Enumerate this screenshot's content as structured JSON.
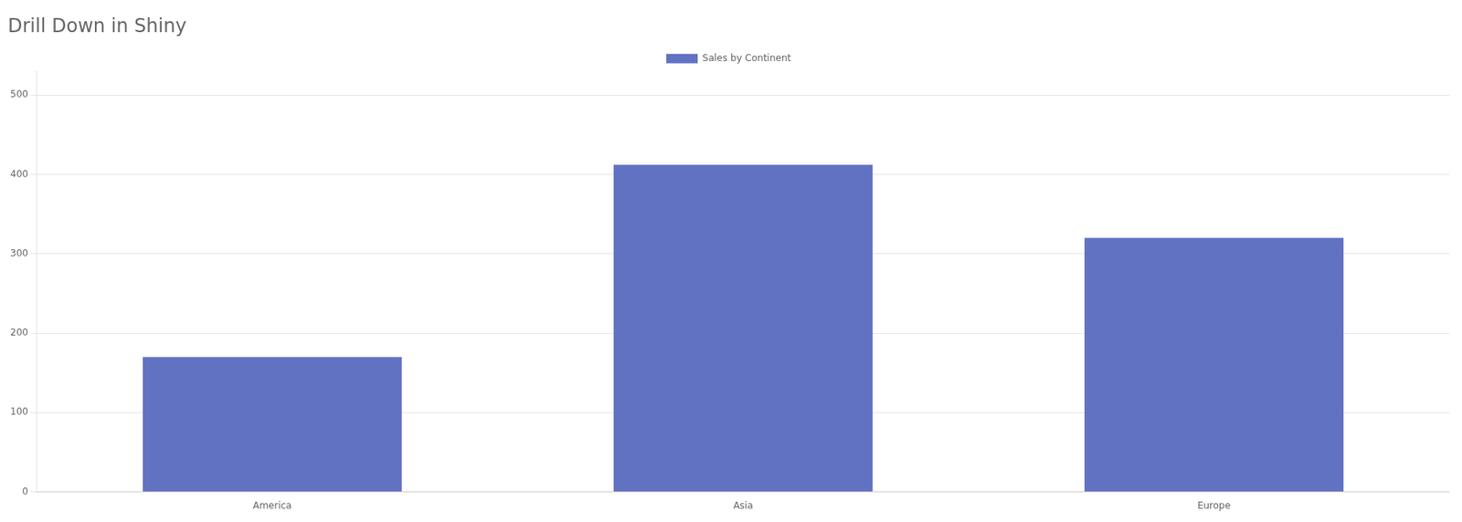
{
  "chart_data": {
    "type": "bar",
    "title": "Drill Down in Shiny",
    "categories": [
      "America",
      "Asia",
      "Europe"
    ],
    "series": [
      {
        "name": "Sales by Continent",
        "color": "#6272c3",
        "values": [
          170,
          412,
          320
        ]
      }
    ],
    "ylim": [
      0,
      530
    ],
    "yticks": [
      0,
      100,
      200,
      300,
      400,
      500
    ],
    "grid": true,
    "legend": "top"
  }
}
